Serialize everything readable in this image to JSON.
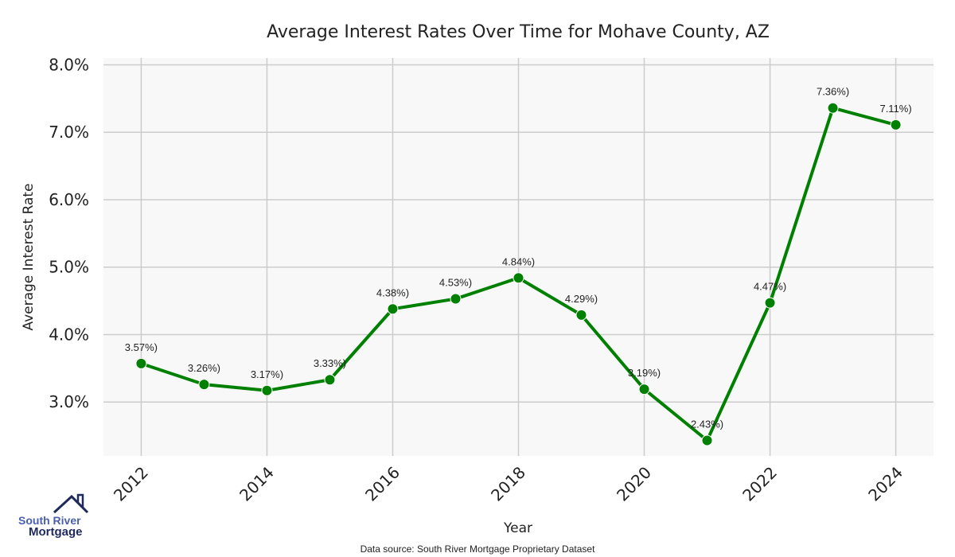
{
  "chart_data": {
    "type": "line",
    "title": "Average Interest Rates Over Time for Mohave County, AZ",
    "xlabel": "Year",
    "ylabel": "Average Interest Rate",
    "x": [
      2012,
      2013,
      2014,
      2015,
      2016,
      2017,
      2018,
      2019,
      2020,
      2021,
      2022,
      2023,
      2024
    ],
    "values": [
      3.57,
      3.26,
      3.17,
      3.33,
      4.38,
      4.53,
      4.84,
      4.29,
      3.19,
      2.43,
      4.47,
      7.36,
      7.11
    ],
    "data_labels": [
      "3.57%)",
      "3.26%)",
      "3.17%)",
      "3.33%)",
      "4.38%)",
      "4.53%)",
      "4.84%)",
      "4.29%)",
      "3.19%)",
      "2.43%)",
      "4.47%)",
      "7.36%)",
      "7.11%)"
    ],
    "xticks": [
      "2012",
      "2014",
      "2016",
      "2018",
      "2020",
      "2022",
      "2024"
    ],
    "yticks": [
      "3.0%",
      "4.0%",
      "5.0%",
      "6.0%",
      "7.0%",
      "8.0%"
    ],
    "xlim": [
      2011.4,
      2024.6
    ],
    "ylim": [
      2.2,
      8.1
    ],
    "grid": true,
    "line_color": "#008000",
    "background": "#f8f8f8",
    "grid_color": "#cccccc"
  },
  "footer": {
    "source": "Data source: South River Mortgage Proprietary Dataset"
  },
  "logo": {
    "line1": "South River",
    "line2": "Mortgage"
  }
}
